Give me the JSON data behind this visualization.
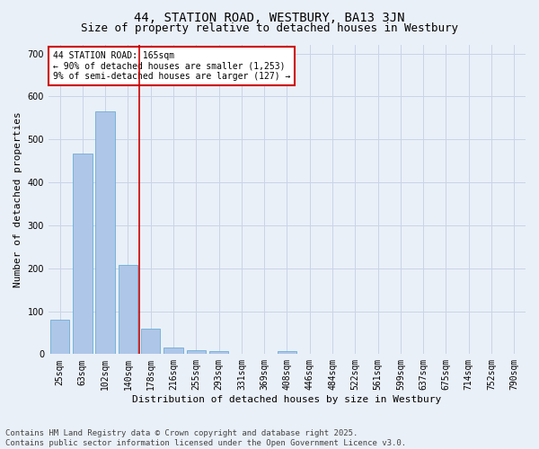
{
  "title1": "44, STATION ROAD, WESTBURY, BA13 3JN",
  "title2": "Size of property relative to detached houses in Westbury",
  "xlabel": "Distribution of detached houses by size in Westbury",
  "ylabel": "Number of detached properties",
  "categories": [
    "25sqm",
    "63sqm",
    "102sqm",
    "140sqm",
    "178sqm",
    "216sqm",
    "255sqm",
    "293sqm",
    "331sqm",
    "369sqm",
    "408sqm",
    "446sqm",
    "484sqm",
    "522sqm",
    "561sqm",
    "599sqm",
    "637sqm",
    "675sqm",
    "714sqm",
    "752sqm",
    "790sqm"
  ],
  "values": [
    80,
    467,
    565,
    208,
    60,
    15,
    9,
    7,
    0,
    0,
    7,
    0,
    0,
    0,
    0,
    0,
    0,
    0,
    0,
    0,
    0
  ],
  "bar_color": "#aec6e8",
  "bar_edge_color": "#6aaed6",
  "grid_color": "#c8d4e8",
  "background_color": "#eaf0f8",
  "redline_x": 3.5,
  "annotation_text": "44 STATION ROAD: 165sqm\n← 90% of detached houses are smaller (1,253)\n9% of semi-detached houses are larger (127) →",
  "annotation_box_facecolor": "#ffffff",
  "annotation_box_edgecolor": "#cc0000",
  "redline_color": "#cc0000",
  "footer": "Contains HM Land Registry data © Crown copyright and database right 2025.\nContains public sector information licensed under the Open Government Licence v3.0.",
  "ylim": [
    0,
    720
  ],
  "yticks": [
    0,
    100,
    200,
    300,
    400,
    500,
    600,
    700
  ],
  "title1_fontsize": 10,
  "title2_fontsize": 9,
  "axis_label_fontsize": 8,
  "tick_fontsize": 7,
  "annotation_fontsize": 7,
  "footer_fontsize": 6.5
}
